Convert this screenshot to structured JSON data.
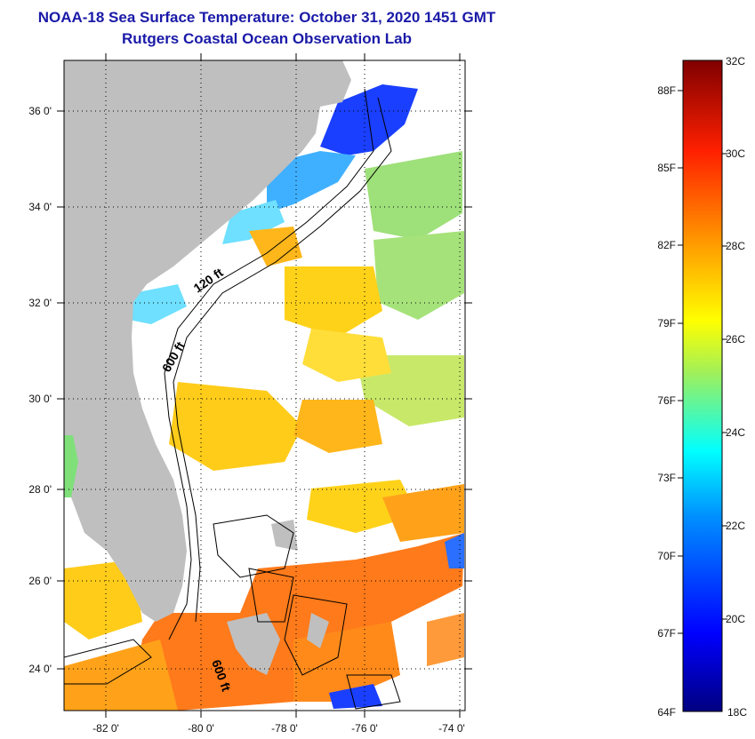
{
  "title": "NOAA-18 Sea Surface Temperature:  October 31, 2020 1451 GMT",
  "subtitle": "Rutgers Coastal Ocean Observation Lab",
  "map": {
    "lat_ticks": [
      "36 0'",
      "34 0'",
      "32 0'",
      "30 0'",
      "28 0'",
      "26 0'",
      "24 0'"
    ],
    "lon_ticks": [
      "-82 0'",
      "-80 0'",
      "-78 0'",
      "-76 0'",
      "-74 0'"
    ],
    "contour_labels": [
      "120 ft",
      "600 ft",
      "600 ft"
    ],
    "colors": {
      "land": "#bfbfbf",
      "cloud": "#ffffff",
      "warm": "#ff7a1a",
      "mid": "#ffd21a",
      "cool": "#7fe07a",
      "cold": "#1a3fff"
    }
  },
  "colorbar": {
    "celsius_labels": [
      "32C",
      "30C",
      "28C",
      "26C",
      "24C",
      "22C",
      "20C",
      "18C"
    ],
    "fahrenheit_labels": [
      "88F",
      "85F",
      "82F",
      "79F",
      "76F",
      "73F",
      "70F",
      "67F",
      "64F"
    ],
    "range_c": [
      18,
      32
    ]
  }
}
